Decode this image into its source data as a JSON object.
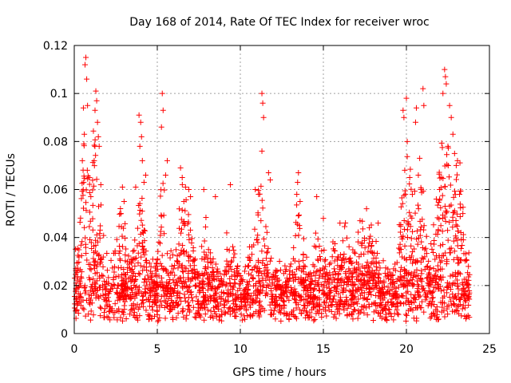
{
  "chart_data": {
    "type": "scatter",
    "title": "Day 168 of 2014, Rate Of TEC Index for receiver wroc",
    "xlabel": "GPS time / hours",
    "ylabel": "ROTI / TECUs",
    "xlim": [
      0,
      25
    ],
    "ylim": [
      0,
      0.12
    ],
    "x_ticks": [
      "0",
      "5",
      "10",
      "15",
      "20",
      "25"
    ],
    "y_ticks": [
      "0",
      "0.02",
      "0.04",
      "0.06",
      "0.08",
      "0.1",
      "0.12"
    ],
    "grid": true,
    "marker": "+",
    "color": "#ff0000",
    "series": [
      {
        "name": "ROTI",
        "sample_density_note": "dense background band",
        "x_range": [
          0,
          23.8
        ],
        "base_y_range": [
          0.005,
          0.03
        ]
      }
    ],
    "peaks": [
      {
        "x": 0.7,
        "y": 0.115
      },
      {
        "x": 0.65,
        "y": 0.112
      },
      {
        "x": 0.75,
        "y": 0.106
      },
      {
        "x": 0.8,
        "y": 0.095
      },
      {
        "x": 0.55,
        "y": 0.094
      },
      {
        "x": 1.3,
        "y": 0.101
      },
      {
        "x": 1.35,
        "y": 0.097
      },
      {
        "x": 1.25,
        "y": 0.093
      },
      {
        "x": 1.4,
        "y": 0.088
      },
      {
        "x": 1.45,
        "y": 0.082
      },
      {
        "x": 1.5,
        "y": 0.078
      },
      {
        "x": 1.2,
        "y": 0.072
      },
      {
        "x": 0.9,
        "y": 0.065
      },
      {
        "x": 1.0,
        "y": 0.057
      },
      {
        "x": 1.6,
        "y": 0.062
      },
      {
        "x": 2.9,
        "y": 0.061
      },
      {
        "x": 3.0,
        "y": 0.055
      },
      {
        "x": 2.8,
        "y": 0.05
      },
      {
        "x": 3.9,
        "y": 0.091
      },
      {
        "x": 4.0,
        "y": 0.088
      },
      {
        "x": 4.05,
        "y": 0.082
      },
      {
        "x": 3.95,
        "y": 0.078
      },
      {
        "x": 4.1,
        "y": 0.072
      },
      {
        "x": 4.3,
        "y": 0.066
      },
      {
        "x": 4.2,
        "y": 0.063
      },
      {
        "x": 3.7,
        "y": 0.061
      },
      {
        "x": 5.3,
        "y": 0.1
      },
      {
        "x": 5.35,
        "y": 0.093
      },
      {
        "x": 5.25,
        "y": 0.086
      },
      {
        "x": 5.6,
        "y": 0.072
      },
      {
        "x": 5.5,
        "y": 0.066
      },
      {
        "x": 6.4,
        "y": 0.069
      },
      {
        "x": 6.5,
        "y": 0.065
      },
      {
        "x": 6.7,
        "y": 0.061
      },
      {
        "x": 6.9,
        "y": 0.06
      },
      {
        "x": 7.0,
        "y": 0.057
      },
      {
        "x": 6.6,
        "y": 0.055
      },
      {
        "x": 7.8,
        "y": 0.06
      },
      {
        "x": 8.5,
        "y": 0.057
      },
      {
        "x": 9.4,
        "y": 0.062
      },
      {
        "x": 10.9,
        "y": 0.06
      },
      {
        "x": 11.1,
        "y": 0.058
      },
      {
        "x": 11.3,
        "y": 0.1
      },
      {
        "x": 11.35,
        "y": 0.096
      },
      {
        "x": 11.4,
        "y": 0.09
      },
      {
        "x": 11.3,
        "y": 0.076
      },
      {
        "x": 11.7,
        "y": 0.067
      },
      {
        "x": 11.8,
        "y": 0.064
      },
      {
        "x": 13.5,
        "y": 0.067
      },
      {
        "x": 13.45,
        "y": 0.063
      },
      {
        "x": 13.4,
        "y": 0.058
      },
      {
        "x": 13.6,
        "y": 0.055
      },
      {
        "x": 14.6,
        "y": 0.057
      },
      {
        "x": 15.0,
        "y": 0.048
      },
      {
        "x": 16.0,
        "y": 0.046
      },
      {
        "x": 17.6,
        "y": 0.052
      },
      {
        "x": 18.3,
        "y": 0.046
      },
      {
        "x": 19.8,
        "y": 0.093
      },
      {
        "x": 19.85,
        "y": 0.09
      },
      {
        "x": 20.0,
        "y": 0.098
      },
      {
        "x": 20.05,
        "y": 0.08
      },
      {
        "x": 19.9,
        "y": 0.068
      },
      {
        "x": 20.2,
        "y": 0.065
      },
      {
        "x": 20.6,
        "y": 0.094
      },
      {
        "x": 20.55,
        "y": 0.088
      },
      {
        "x": 20.8,
        "y": 0.073
      },
      {
        "x": 21.0,
        "y": 0.102
      },
      {
        "x": 21.05,
        "y": 0.095
      },
      {
        "x": 20.9,
        "y": 0.06
      },
      {
        "x": 22.3,
        "y": 0.11
      },
      {
        "x": 22.35,
        "y": 0.107
      },
      {
        "x": 22.4,
        "y": 0.104
      },
      {
        "x": 22.2,
        "y": 0.1
      },
      {
        "x": 22.6,
        "y": 0.095
      },
      {
        "x": 22.7,
        "y": 0.09
      },
      {
        "x": 22.8,
        "y": 0.083
      },
      {
        "x": 22.5,
        "y": 0.078
      },
      {
        "x": 22.9,
        "y": 0.075
      },
      {
        "x": 23.0,
        "y": 0.07
      },
      {
        "x": 22.1,
        "y": 0.065
      },
      {
        "x": 22.0,
        "y": 0.06
      },
      {
        "x": 21.8,
        "y": 0.056
      },
      {
        "x": 23.2,
        "y": 0.058
      },
      {
        "x": 23.4,
        "y": 0.05
      }
    ]
  }
}
